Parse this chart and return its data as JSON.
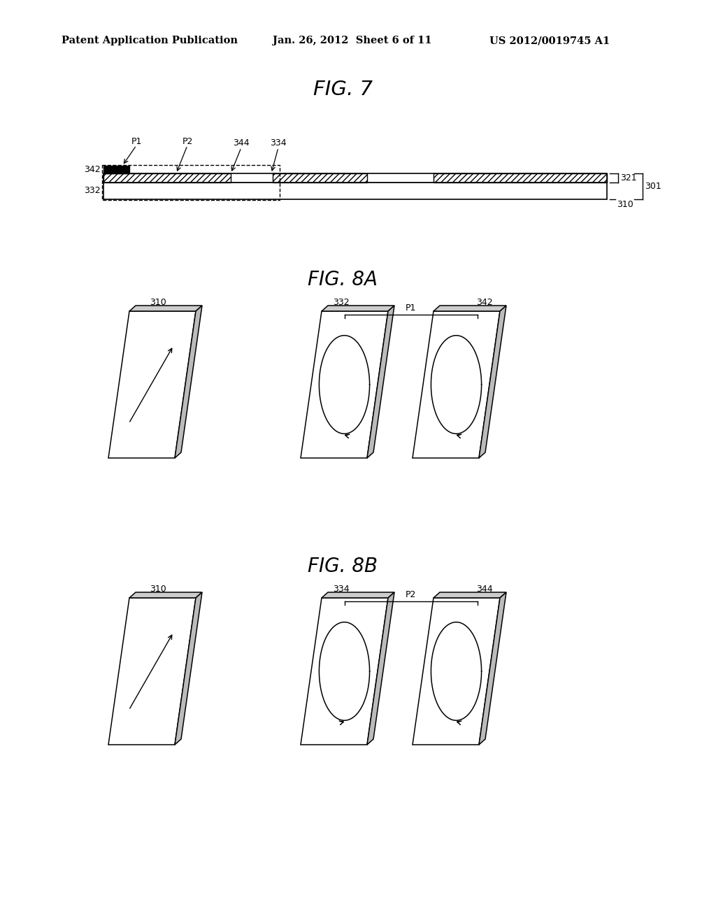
{
  "bg_color": "#ffffff",
  "header_left": "Patent Application Publication",
  "header_mid": "Jan. 26, 2012  Sheet 6 of 11",
  "header_right": "US 2012/0019745 A1",
  "fig7_title": "FIG. 7",
  "fig8a_title": "FIG. 8A",
  "fig8b_title": "FIG. 8B",
  "text_color": "#000000",
  "line_color": "#000000"
}
